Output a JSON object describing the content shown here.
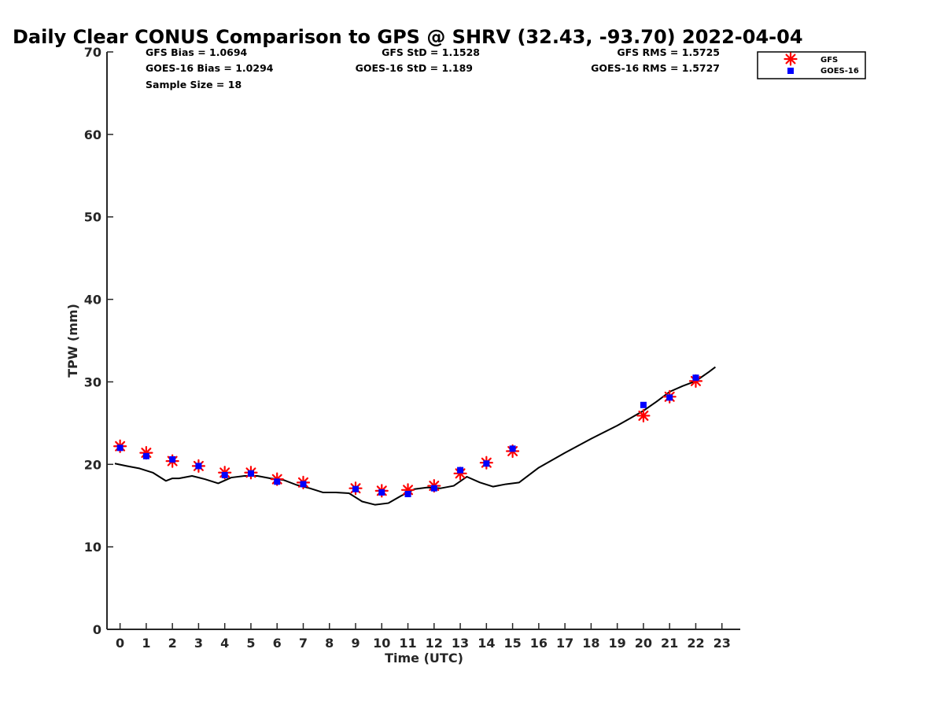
{
  "chart_data": {
    "type": "scatter",
    "title": "Daily Clear CONUS Comparison to GPS @ SHRV (32.43, -93.70) 2022-04-04",
    "xlabel": "Time (UTC)",
    "ylabel": "TPW (mm)",
    "xlim": [
      -0.5,
      23.7
    ],
    "ylim": [
      0,
      70
    ],
    "xticks": [
      "0",
      "1",
      "2",
      "3",
      "4",
      "5",
      "6",
      "7",
      "8",
      "9",
      "10",
      "11",
      "12",
      "13",
      "14",
      "15",
      "16",
      "17",
      "18",
      "19",
      "20",
      "21",
      "22",
      "23"
    ],
    "yticks": [
      "0",
      "10",
      "20",
      "30",
      "40",
      "50",
      "60",
      "70"
    ],
    "grid": false,
    "legend_position": "top-right",
    "stats": {
      "gfs_bias": "GFS Bias = 1.0694",
      "gfs_std": "GFS StD = 1.1528",
      "gfs_rms": "GFS RMS = 1.5725",
      "goes_bias": "GOES-16 Bias = 1.0294",
      "goes_std": "GOES-16 StD = 1.189",
      "goes_rms": "GOES-16 RMS = 1.5727",
      "sample_size": "Sample Size = 18"
    },
    "series": [
      {
        "name": "GFS",
        "marker": "asterisk",
        "color": "#ff0000",
        "x": [
          0,
          1,
          2,
          3,
          4,
          5,
          6,
          7,
          9,
          10,
          11,
          12,
          13,
          14,
          15,
          20,
          21,
          22
        ],
        "y": [
          22.2,
          21.4,
          20.4,
          19.8,
          19.0,
          19.0,
          18.2,
          17.8,
          17.1,
          16.8,
          16.9,
          17.4,
          18.9,
          20.2,
          21.6,
          25.9,
          28.2,
          30.1
        ]
      },
      {
        "name": "GOES-16",
        "marker": "square",
        "color": "#0000ff",
        "x": [
          0,
          1,
          2,
          3,
          4,
          5,
          6,
          7,
          9,
          10,
          11,
          12,
          13,
          14,
          15,
          20,
          21,
          22
        ],
        "y": [
          22.0,
          21.0,
          20.6,
          19.8,
          18.7,
          18.9,
          17.9,
          17.6,
          17.0,
          16.6,
          16.4,
          17.1,
          19.3,
          20.1,
          21.9,
          27.2,
          28.1,
          30.5
        ]
      },
      {
        "marker": "line",
        "color": "#000000",
        "x": [
          -0.2,
          0.25,
          0.75,
          1.25,
          1.75,
          2.0,
          2.25,
          2.75,
          3.25,
          3.75,
          4.25,
          4.75,
          5.25,
          5.75,
          6.25,
          6.75,
          7.25,
          7.75,
          8.25,
          8.75,
          9.25,
          9.75,
          10.25,
          10.75,
          11.25,
          11.75,
          12.25,
          12.75,
          13.25,
          13.75,
          14.25,
          14.75,
          15.25,
          16.0,
          17.0,
          18.0,
          19.0,
          19.5,
          20.0,
          20.5,
          21.0,
          21.5,
          22.0,
          22.5,
          22.75
        ],
        "y": [
          20.1,
          19.8,
          19.5,
          19.0,
          18.0,
          18.3,
          18.3,
          18.6,
          18.2,
          17.7,
          18.4,
          18.6,
          18.6,
          18.3,
          18.1,
          17.5,
          17.1,
          16.6,
          16.6,
          16.5,
          15.5,
          15.1,
          15.3,
          16.2,
          17.0,
          17.2,
          17.1,
          17.4,
          18.5,
          17.8,
          17.3,
          17.6,
          17.8,
          19.6,
          21.4,
          23.1,
          24.7,
          25.6,
          26.5,
          27.6,
          28.8,
          29.5,
          30.1,
          31.2,
          31.8
        ]
      }
    ]
  }
}
